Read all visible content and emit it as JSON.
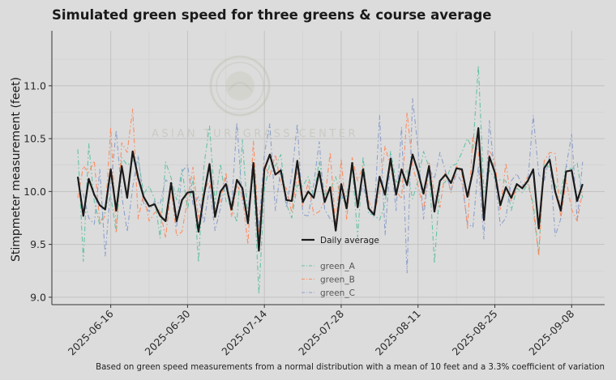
{
  "chart_data": {
    "type": "line",
    "title": "Simulated green speed for three greens & course average",
    "xlabel": "",
    "ylabel": "Stimpmeter measurement (feet)",
    "caption": "Based on green speed measurements from a normal distribution with a mean of 10 feet and a 3.3% coefficient of variation",
    "watermark": "ASIAN TURFGRASS CENTER",
    "x_start": "2025-06-10",
    "x": [
      "2025-06-10",
      "2025-06-11",
      "2025-06-12",
      "2025-06-13",
      "2025-06-14",
      "2025-06-15",
      "2025-06-16",
      "2025-06-17",
      "2025-06-18",
      "2025-06-19",
      "2025-06-20",
      "2025-06-21",
      "2025-06-22",
      "2025-06-23",
      "2025-06-24",
      "2025-06-25",
      "2025-06-26",
      "2025-06-27",
      "2025-06-28",
      "2025-06-29",
      "2025-06-30",
      "2025-07-01",
      "2025-07-02",
      "2025-07-03",
      "2025-07-04",
      "2025-07-05",
      "2025-07-06",
      "2025-07-07",
      "2025-07-08",
      "2025-07-09",
      "2025-07-10",
      "2025-07-11",
      "2025-07-12",
      "2025-07-13",
      "2025-07-14",
      "2025-07-15",
      "2025-07-16",
      "2025-07-17",
      "2025-07-18",
      "2025-07-19",
      "2025-07-20",
      "2025-07-21",
      "2025-07-22",
      "2025-07-23",
      "2025-07-24",
      "2025-07-25",
      "2025-07-26",
      "2025-07-27",
      "2025-07-28",
      "2025-07-29",
      "2025-07-30",
      "2025-07-31",
      "2025-08-01",
      "2025-08-02",
      "2025-08-03",
      "2025-08-04",
      "2025-08-05",
      "2025-08-06",
      "2025-08-07",
      "2025-08-08",
      "2025-08-09",
      "2025-08-10",
      "2025-08-11",
      "2025-08-12",
      "2025-08-13",
      "2025-08-14",
      "2025-08-15",
      "2025-08-16",
      "2025-08-17",
      "2025-08-18",
      "2025-08-19",
      "2025-08-20",
      "2025-08-21",
      "2025-08-22",
      "2025-08-23",
      "2025-08-24",
      "2025-08-25",
      "2025-08-26",
      "2025-08-27",
      "2025-08-28",
      "2025-08-29",
      "2025-08-30",
      "2025-08-31",
      "2025-09-01",
      "2025-09-02",
      "2025-09-03",
      "2025-09-04",
      "2025-09-05",
      "2025-09-06",
      "2025-09-07",
      "2025-09-08",
      "2025-09-09",
      "2025-09-10"
    ],
    "x_ticks": [
      "2025-06-16",
      "2025-06-30",
      "2025-07-14",
      "2025-07-28",
      "2025-08-11",
      "2025-08-25",
      "2025-09-08"
    ],
    "y_ticks": [
      9.0,
      9.5,
      10.0,
      10.5,
      11.0
    ],
    "ylim": [
      8.93,
      11.52
    ],
    "grid": true,
    "legend_position": "bottom-center",
    "series": [
      {
        "name": "Daily average",
        "color": "#1a1a1a",
        "style": "solid",
        "values": [
          10.14,
          9.77,
          10.12,
          9.97,
          9.87,
          9.83,
          10.21,
          9.82,
          10.24,
          9.94,
          10.38,
          10.13,
          9.95,
          9.86,
          9.88,
          9.77,
          9.72,
          10.08,
          9.72,
          9.92,
          9.99,
          10.0,
          9.62,
          9.97,
          10.26,
          9.76,
          10.0,
          10.07,
          9.83,
          10.11,
          10.03,
          9.7,
          10.27,
          9.44,
          10.21,
          10.35,
          10.16,
          10.2,
          9.92,
          9.91,
          10.29,
          9.9,
          10.0,
          9.94,
          10.19,
          9.9,
          10.04,
          9.63,
          10.07,
          9.84,
          10.27,
          9.85,
          10.21,
          9.84,
          9.78,
          10.14,
          9.97,
          10.31,
          9.97,
          10.21,
          10.06,
          10.35,
          10.19,
          9.98,
          10.24,
          9.81,
          10.1,
          10.16,
          10.08,
          10.22,
          10.21,
          9.95,
          10.19,
          10.6,
          9.73,
          10.33,
          10.18,
          9.87,
          10.04,
          9.94,
          10.07,
          10.03,
          10.1,
          10.21,
          9.65,
          10.22,
          10.3,
          10.0,
          9.82,
          10.19,
          10.2,
          9.91,
          10.07
        ]
      },
      {
        "name": "green_A",
        "color": "#66c2a5",
        "style": "dash-dot",
        "values": [
          10.4,
          9.34,
          10.45,
          9.91,
          9.68,
          9.83,
          9.96,
          9.61,
          10.32,
          10.25,
          10.29,
          10.31,
          9.98,
          10.05,
          9.93,
          9.56,
          10.28,
          10.13,
          9.92,
          10.21,
          9.83,
          10.13,
          9.33,
          10.25,
          10.62,
          9.88,
          10.26,
          9.91,
          9.86,
          9.71,
          10.49,
          9.74,
          10.17,
          9.03,
          10.02,
          10.26,
          10.24,
          10.35,
          9.88,
          9.75,
          10.06,
          10.05,
          10.14,
          9.95,
          10.29,
          9.97,
          10.01,
          10.14,
          9.93,
          9.96,
          10.25,
          9.57,
          10.33,
          9.79,
          9.78,
          9.73,
          9.88,
          10.38,
          10.09,
          10.1,
          10.21,
          9.93,
          10.1,
          10.38,
          10.23,
          9.32,
          10.06,
          10.09,
          10.24,
          10.26,
          10.37,
          10.5,
          10.4,
          11.19,
          9.99,
          10.2,
          10.12,
          10.11,
          10.1,
          9.82,
          10.03,
          9.99,
          10.07,
          9.89,
          9.41,
          10.29,
          10.22,
          10.06,
          9.98,
          10.24,
          10.21,
          10.27,
          9.94
        ]
      },
      {
        "name": "green_B",
        "color": "#fc8d62",
        "style": "dash-dot",
        "values": [
          9.94,
          10.24,
          10.18,
          10.29,
          9.7,
          9.77,
          10.61,
          9.62,
          10.46,
          10.37,
          10.78,
          9.74,
          9.98,
          9.72,
          9.8,
          9.83,
          9.56,
          10.04,
          9.58,
          9.62,
          9.93,
          10.23,
          9.74,
          10.01,
          10.1,
          9.83,
          9.91,
          10.18,
          9.76,
          10.06,
          9.96,
          9.5,
          10.48,
          9.62,
          10.26,
          10.14,
          10.35,
          10.07,
          10.03,
          9.8,
          10.18,
          9.86,
          10.09,
          9.78,
          9.81,
          9.91,
          10.37,
          9.67,
          10.31,
          9.73,
          10.32,
          10.1,
          10.24,
          9.91,
          9.8,
          9.98,
          10.43,
          10.22,
          10.01,
          9.93,
          10.75,
          10.24,
          10.06,
          9.82,
          10.27,
          9.99,
          9.85,
          10.2,
          9.99,
          10.24,
          10.17,
          9.65,
          10.52,
          10.37,
          9.72,
          10.39,
          10.29,
          9.82,
          10.27,
          9.91,
          10.03,
          10.04,
          10.14,
          9.83,
          9.39,
          10.29,
          10.37,
          10.36,
          9.74,
          10.11,
          9.83,
          9.72,
          10.0
        ]
      },
      {
        "name": "green_C",
        "color": "#8da0cb",
        "style": "dash-dot",
        "values": [
          10.07,
          9.98,
          9.75,
          9.69,
          10.21,
          9.39,
          10.05,
          10.58,
          9.96,
          9.62,
          10.04,
          10.34,
          9.89,
          9.81,
          9.91,
          9.88,
          10.11,
          10.07,
          9.66,
          10.19,
          10.25,
          9.87,
          9.95,
          9.7,
          10.05,
          9.63,
          9.84,
          10.13,
          9.86,
          10.65,
          9.89,
          9.84,
          10.17,
          9.66,
          10.36,
          10.64,
          9.82,
          10.22,
          9.85,
          10.16,
          10.64,
          9.78,
          9.77,
          10.07,
          10.47,
          9.83,
          9.74,
          9.69,
          9.98,
          9.84,
          10.24,
          9.88,
          10.06,
          9.83,
          9.76,
          10.72,
          9.59,
          10.33,
          9.82,
          10.61,
          9.23,
          10.88,
          10.41,
          9.74,
          10.22,
          10.12,
          10.37,
          10.19,
          10.01,
          10.17,
          10.09,
          9.7,
          9.66,
          10.24,
          9.55,
          10.67,
          10.14,
          9.68,
          9.75,
          10.1,
          10.17,
          10.06,
          10.08,
          10.72,
          10.16,
          10.1,
          10.34,
          9.58,
          9.74,
          10.24,
          10.54,
          9.73,
          10.28
        ]
      }
    ]
  }
}
